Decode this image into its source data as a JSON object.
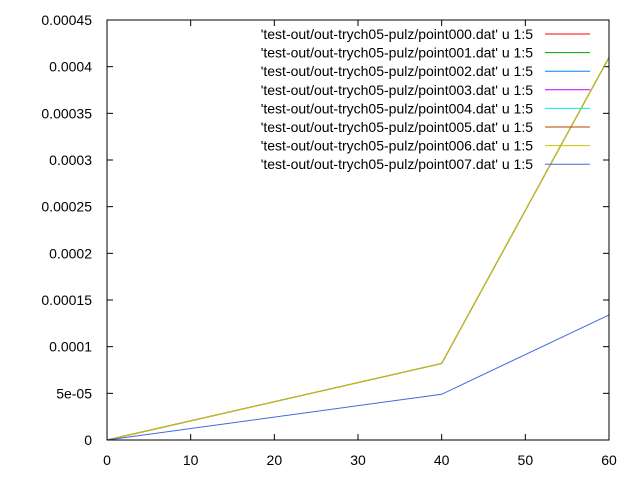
{
  "chart_data": {
    "type": "line",
    "title": "",
    "xlabel": "",
    "ylabel": "",
    "xlim": [
      0,
      60
    ],
    "ylim": [
      0,
      0.00045
    ],
    "x_ticks": [
      0,
      10,
      20,
      30,
      40,
      50,
      60
    ],
    "x_tick_labels": [
      "0",
      "10",
      "20",
      "30",
      "40",
      "50",
      "60"
    ],
    "y_ticks": [
      0,
      5e-05,
      0.0001,
      0.00015,
      0.0002,
      0.00025,
      0.0003,
      0.00035,
      0.0004,
      0.00045
    ],
    "y_tick_labels": [
      "0",
      "5e-05",
      "0.0001",
      "0.00015",
      "0.0002",
      "0.00025",
      "0.0003",
      "0.00035",
      "0.0004",
      "0.00045"
    ],
    "grid": false,
    "legend_position": "top-right",
    "series": [
      {
        "name": "'test-out/out-trych05-pulz/point000.dat' u 1:5",
        "color": "#ff0000",
        "x": [
          0,
          40,
          60
        ],
        "y": [
          0,
          8.2e-05,
          0.00041
        ]
      },
      {
        "name": "'test-out/out-trych05-pulz/point001.dat' u 1:5",
        "color": "#00a000",
        "x": [
          0,
          40,
          60
        ],
        "y": [
          0,
          8.2e-05,
          0.00041
        ]
      },
      {
        "name": "'test-out/out-trych05-pulz/point002.dat' u 1:5",
        "color": "#0080ff",
        "x": [
          0,
          40,
          60
        ],
        "y": [
          0,
          8.2e-05,
          0.00041
        ]
      },
      {
        "name": "'test-out/out-trych05-pulz/point003.dat' u 1:5",
        "color": "#c000ff",
        "x": [
          0,
          40,
          60
        ],
        "y": [
          0,
          8.2e-05,
          0.00041
        ]
      },
      {
        "name": "'test-out/out-trych05-pulz/point004.dat' u 1:5",
        "color": "#00eeee",
        "x": [
          0,
          40,
          60
        ],
        "y": [
          0,
          8.2e-05,
          0.00041
        ]
      },
      {
        "name": "'test-out/out-trych05-pulz/point005.dat' u 1:5",
        "color": "#c04000",
        "x": [
          0,
          40,
          60
        ],
        "y": [
          0,
          8.2e-05,
          0.00041
        ]
      },
      {
        "name": "'test-out/out-trych05-pulz/point006.dat' u 1:5",
        "color": "#c8c800",
        "x": [
          0,
          40,
          60
        ],
        "y": [
          0,
          8.2e-05,
          0.00041
        ]
      },
      {
        "name": "'test-out/out-trych05-pulz/point007.dat' u 1:5",
        "color": "#4169e1",
        "x": [
          0,
          40,
          60
        ],
        "y": [
          0,
          4.9e-05,
          0.000134
        ]
      }
    ]
  }
}
